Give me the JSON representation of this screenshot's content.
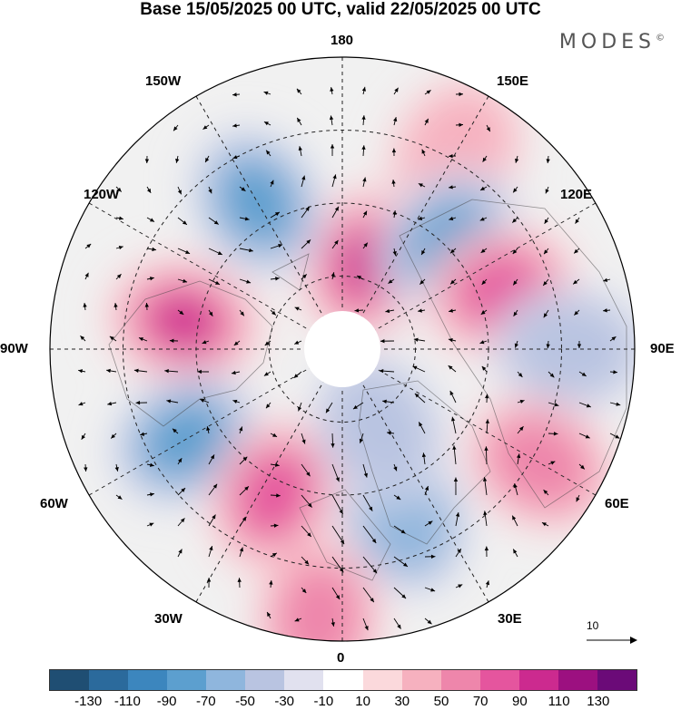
{
  "title": "Base 15/05/2025 00 UTC, valid 22/05/2025 00 UTC",
  "logo": "MODES",
  "logo_mark": "©",
  "longitude_labels": {
    "n180": "180",
    "w150": "150W",
    "e150": "150E",
    "w120": "120W",
    "e120": "120E",
    "w90": "90W",
    "e90": "90E",
    "w60": "60W",
    "e60": "60E",
    "w30": "30W",
    "e30": "30E",
    "s0": "0"
  },
  "reference_vector": {
    "label": "10"
  },
  "colorbar": {
    "colors": [
      "#1f4e73",
      "#2b6a9c",
      "#3c86be",
      "#5c9fcf",
      "#8fb6dd",
      "#b9c4e1",
      "#e1e1ef",
      "#ffffff",
      "#fbd9dc",
      "#f6b1bf",
      "#ee86ab",
      "#e5559e",
      "#cc2a8f",
      "#9c1080",
      "#6b0a78"
    ],
    "ticks": [
      "-130",
      "-110",
      "-90",
      "-70",
      "-50",
      "-30",
      "-10",
      "10",
      "30",
      "50",
      "70",
      "90",
      "110",
      "130"
    ]
  },
  "anomaly_centers": [
    {
      "lon": 165,
      "lat_ring": 0.3,
      "value": 90
    },
    {
      "lon": 150,
      "lat_ring": 0.78,
      "value": 30
    },
    {
      "lon": -150,
      "lat_ring": 0.58,
      "value": -70
    },
    {
      "lon": 135,
      "lat_ring": 0.52,
      "value": -70
    },
    {
      "lon": 110,
      "lat_ring": 0.58,
      "value": 70
    },
    {
      "lon": -100,
      "lat_ring": 0.55,
      "value": 90
    },
    {
      "lon": 90,
      "lat_ring": 0.78,
      "value": -30
    },
    {
      "lon": -60,
      "lat_ring": 0.62,
      "value": -70
    },
    {
      "lon": 60,
      "lat_ring": 0.78,
      "value": 50
    },
    {
      "lon": -25,
      "lat_ring": 0.55,
      "value": 70
    },
    {
      "lon": 20,
      "lat_ring": 0.62,
      "value": -50
    },
    {
      "lon": -5,
      "lat_ring": 0.92,
      "value": 50
    },
    {
      "lon": 25,
      "lat_ring": 0.3,
      "value": -30
    }
  ]
}
